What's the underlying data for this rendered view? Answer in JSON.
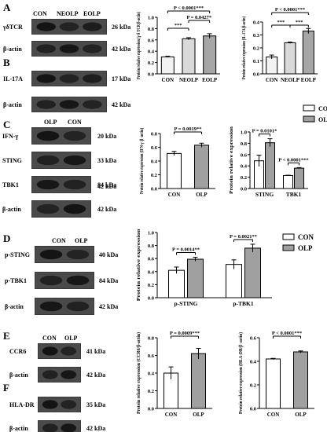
{
  "panels": {
    "A": {
      "letter": "A",
      "lanes": [
        "CON",
        "NEOLP",
        "EOLP"
      ],
      "blots": [
        {
          "label": "γδTCR",
          "kda": "26 kDa"
        },
        {
          "label": "β-actin",
          "kda": "42 kDa"
        }
      ]
    },
    "B": {
      "letter": "B",
      "blots": [
        {
          "label": "IL-17A",
          "kda": "17 kDa"
        },
        {
          "label": "β-actin",
          "kda": "42 kDa"
        }
      ]
    },
    "C": {
      "letter": "C",
      "lanes": [
        "OLP",
        "CON"
      ],
      "blots": [
        {
          "label": "IFN-γ",
          "kda": "20 kDa"
        },
        {
          "label": "STING",
          "kda": "33 kDa"
        },
        {
          "label": "TBK1",
          "kda": "84 kDa"
        },
        {
          "label": "β-actin",
          "kda": "42 kDa"
        }
      ],
      "extra_kda": "42 kDa"
    },
    "D": {
      "letter": "D",
      "lanes": [
        "CON",
        "OLP"
      ],
      "blots": [
        {
          "label": "p-STING",
          "kda": "40 kDa"
        },
        {
          "label": "p-TBK1",
          "kda": "84 kDa"
        },
        {
          "label": "β-actin",
          "kda": "42 kDa"
        }
      ]
    },
    "E": {
      "letter": "E",
      "lanes": [
        "CON",
        "OLP"
      ],
      "blots": [
        {
          "label": "CCR6",
          "kda": "41 kDa"
        },
        {
          "label": "β-actin",
          "kda": "42 kDa"
        }
      ]
    },
    "F": {
      "letter": "F",
      "blots": [
        {
          "label": "HLA-DR",
          "kda": "35 kDa"
        },
        {
          "label": "β-actin",
          "kda": "42 kDa"
        }
      ]
    }
  },
  "legend_labels": {
    "con": "CON",
    "olp": "OLP"
  },
  "colors": {
    "con_fill": "#ffffff",
    "olp_fill": "#a0a0a0",
    "a_con": "#f2f2f2",
    "a_neolp": "#d9d9d9",
    "a_eolp": "#a6a6a6"
  },
  "chart_data": [
    {
      "id": "A-chart",
      "type": "bar",
      "categories": [
        "CON",
        "NEOLP",
        "EOLP"
      ],
      "values": [
        0.3,
        0.62,
        0.67
      ],
      "errors": [
        0.01,
        0.02,
        0.04
      ],
      "ylabel": "Protein relative expression (γ δ TCR/β-actin)",
      "ylim": [
        0,
        1.0
      ],
      "yticks": [
        "0.0",
        "0.2",
        "0.4",
        "0.6",
        "0.8",
        "1.0"
      ],
      "annotations": [
        "P < 0.0001***",
        "***",
        "P = 0.0427*"
      ]
    },
    {
      "id": "B-chart",
      "type": "bar",
      "categories": [
        "CON",
        "NEOLP",
        "EOLP"
      ],
      "values": [
        0.13,
        0.24,
        0.33
      ],
      "errors": [
        0.015,
        0.005,
        0.02
      ],
      "ylabel": "Protein relative expression (IL-17A/β-actin)",
      "ylim": [
        0,
        0.4
      ],
      "yticks": [
        "0.0",
        "0.1",
        "0.2",
        "0.3",
        "0.4"
      ],
      "annotations": [
        "P < 0.0001***",
        "***",
        "***"
      ]
    },
    {
      "id": "C-chart1",
      "type": "bar",
      "categories": [
        "CON",
        "OLP"
      ],
      "values": [
        0.51,
        0.63
      ],
      "errors": [
        0.03,
        0.03
      ],
      "ylabel": "Protein relative expression (IFN-γ /β -actin)",
      "ylim": [
        0,
        0.8
      ],
      "yticks": [
        "0.0",
        "0.2",
        "0.4",
        "0.6",
        "0.8"
      ],
      "annotations": [
        "P = 0.0019**"
      ]
    },
    {
      "id": "C-chart2",
      "type": "bar",
      "categories": [
        "STING",
        "TBK1"
      ],
      "series": [
        {
          "name": "CON",
          "values": [
            0.49,
            0.23
          ],
          "errors": [
            0.1,
            0.005
          ]
        },
        {
          "name": "OLP",
          "values": [
            0.81,
            0.36
          ],
          "errors": [
            0.07,
            0.01
          ]
        }
      ],
      "ylabel": "Protein relative expression",
      "ylim": [
        0,
        1.0
      ],
      "yticks": [
        "0.0",
        "0.2",
        "0.4",
        "0.6",
        "0.8",
        "1.0"
      ],
      "annotations": [
        "P = 0.0101*",
        "P < 0.0001***"
      ],
      "legend": "top-right"
    },
    {
      "id": "D-chart",
      "type": "bar",
      "categories": [
        "p-STING",
        "p-TBK1"
      ],
      "series": [
        {
          "name": "CON",
          "values": [
            0.42,
            0.51
          ],
          "errors": [
            0.05,
            0.07
          ]
        },
        {
          "name": "OLP",
          "values": [
            0.59,
            0.76
          ],
          "errors": [
            0.03,
            0.06
          ]
        }
      ],
      "ylabel": "Protein relative expression",
      "ylim": [
        0,
        1.0
      ],
      "yticks": [
        "0.0",
        "0.2",
        "0.4",
        "0.6",
        "0.8",
        "1.0"
      ],
      "annotations": [
        "P = 0.0014**",
        "P = 0.0021**"
      ],
      "legend": "top-right"
    },
    {
      "id": "E-chart",
      "type": "bar",
      "categories": [
        "CON",
        "OLP"
      ],
      "values": [
        0.4,
        0.62
      ],
      "errors": [
        0.07,
        0.06
      ],
      "ylabel": "Protein relative expression (CCR6/β-actin)",
      "ylim": [
        0,
        0.8
      ],
      "yticks": [
        "0.0",
        "0.2",
        "0.4",
        "0.6",
        "0.8"
      ],
      "annotations": [
        "P = 0.0009***"
      ]
    },
    {
      "id": "F-chart",
      "type": "bar",
      "categories": [
        "CON",
        "OLP"
      ],
      "values": [
        0.42,
        0.48
      ],
      "errors": [
        0.005,
        0.008
      ],
      "ylabel": "Protein relative expression (HLA-DR/β -actin)",
      "ylim": [
        0,
        0.6
      ],
      "yticks": [
        "0.0",
        "0.2",
        "0.4",
        "0.6"
      ],
      "annotations": [
        "P < 0.0001***"
      ]
    }
  ]
}
